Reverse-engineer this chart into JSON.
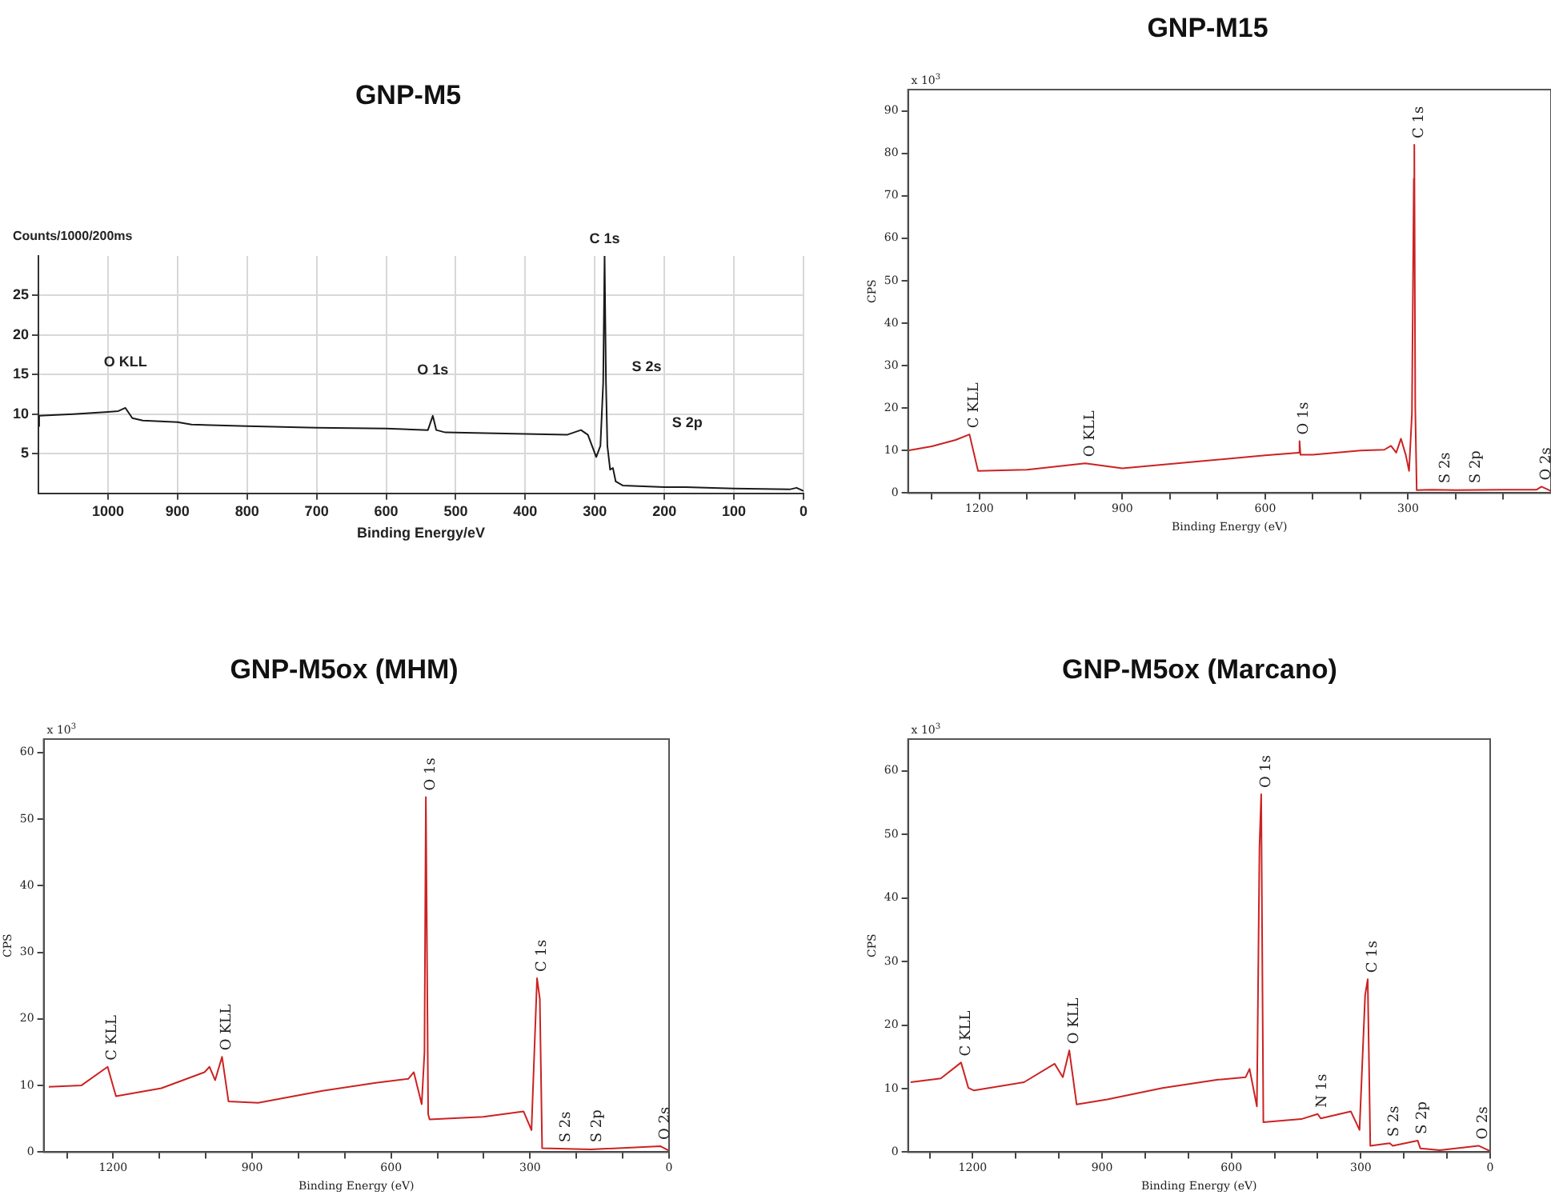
{
  "chart_data": [
    {
      "type": "line",
      "title": "GNP-M5",
      "xlabel": "Binding Energy/eV",
      "ylabel": "Counts/1000/200ms",
      "color": "#1a1a1a",
      "grid": true,
      "x": [
        1100,
        1099,
        1050,
        1000,
        985,
        975,
        965,
        950,
        900,
        880,
        800,
        700,
        600,
        540,
        533,
        528,
        515,
        400,
        340,
        320,
        310,
        298,
        292,
        288,
        286,
        284,
        282,
        278,
        274,
        270,
        260,
        200,
        170,
        100,
        20,
        10,
        0
      ],
      "values": [
        8.5,
        9.8,
        10,
        10.3,
        10.4,
        10.8,
        9.5,
        9.2,
        9.0,
        8.7,
        8.5,
        8.3,
        8.2,
        8.0,
        9.8,
        8.0,
        7.7,
        7.5,
        7.4,
        8.0,
        7.4,
        4.6,
        6,
        14,
        30,
        14,
        6,
        3.0,
        3.2,
        1.5,
        1.0,
        0.8,
        0.8,
        0.6,
        0.5,
        0.7,
        0.3
      ],
      "xlim": [
        1100,
        0
      ],
      "ylim": [
        0,
        30
      ],
      "xticks": [
        1000,
        900,
        800,
        700,
        600,
        500,
        400,
        300,
        200,
        100,
        0
      ],
      "yticks": [
        5,
        10,
        15,
        20,
        25
      ],
      "annotations": [
        {
          "text": "O KLL",
          "x": 975,
          "y": 10.8
        },
        {
          "text": "O 1s",
          "x": 533,
          "y": 9.8
        },
        {
          "text": "C 1s",
          "x": 286,
          "y": 30
        },
        "S 2s",
        "S 2p"
      ]
    },
    {
      "type": "line",
      "title": "GNP-M15",
      "xlabel": "Binding Energy (eV)",
      "ylabel": "CPS",
      "color": "#cc2222",
      "x": [
        1350,
        1300,
        1250,
        1221,
        1203,
        1100,
        978,
        900,
        600,
        530,
        528,
        526,
        500,
        400,
        350,
        336,
        325,
        315,
        305,
        298,
        292,
        288,
        287,
        285,
        282,
        250,
        200,
        100,
        30,
        20,
        10,
        0
      ],
      "values": [
        10,
        11,
        12.5,
        13.8,
        5.2,
        5.5,
        7,
        5.8,
        8.9,
        9.5,
        12.2,
        9,
        9,
        10,
        10.2,
        11.1,
        9.5,
        12.8,
        9,
        5.2,
        18.7,
        74,
        82,
        20,
        0.7,
        0.8,
        0.7,
        0.8,
        0.8,
        1.5,
        1.0,
        0.5
      ],
      "xlim": [
        1350,
        0
      ],
      "ylim": [
        0,
        95
      ],
      "xticks": [
        {
          "value": 1300,
          "label": null
        },
        1200,
        {
          "value": 1100,
          "label": null
        },
        {
          "value": 1000,
          "label": null
        },
        900,
        {
          "value": 800,
          "label": null
        },
        {
          "value": 700,
          "label": null
        },
        600,
        {
          "value": 500,
          "label": null
        },
        {
          "value": 400,
          "label": null
        },
        300,
        {
          "value": 200,
          "label": null
        },
        {
          "value": 100,
          "label": null
        }
      ],
      "yticks": [
        0,
        10,
        20,
        30,
        40,
        50,
        60,
        70,
        80,
        90
      ],
      "annotations": [
        "x 10$^{3}$",
        {
          "text": "C KLL",
          "x": 1221,
          "y": 13.8
        },
        {
          "text": "O KLL",
          "x": 978,
          "y": 7
        },
        {
          "text": "O 1s",
          "x": 528,
          "y": 12.2
        },
        {
          "text": "C 1s",
          "x": 287,
          "y": 82
        },
        {
          "text": "S 2s",
          "x": 232,
          "y": 0.8
        },
        {
          "text": "S 2p",
          "x": 168,
          "y": 0.8
        },
        {
          "text": "O 2s",
          "x": 20,
          "y": 1.5
        }
      ]
    },
    {
      "type": "line",
      "title": "GNP-M5ox (MHM)",
      "xlabel": "Binding Energy (eV)",
      "ylabel": "CPS",
      "color": "#cc2222",
      "x": [
        1339,
        1269,
        1212,
        1194,
        1096,
        1003,
        992,
        980,
        965,
        951,
        887,
        748,
        633,
        563,
        551,
        534,
        528,
        525,
        520,
        517,
        401,
        314,
        297,
        285,
        279,
        274,
        169,
        19,
        0
      ],
      "values": [
        9.8,
        10,
        12.8,
        8.4,
        9.6,
        12,
        12.8,
        10.8,
        14.3,
        7.6,
        7.4,
        9.2,
        10.4,
        11,
        12,
        7.2,
        15,
        53.3,
        5.7,
        4.9,
        5.3,
        6.1,
        3.3,
        26.1,
        23,
        0.6,
        0.4,
        0.9,
        0.2
      ],
      "xlim": [
        1350,
        0
      ],
      "ylim": [
        0,
        62
      ],
      "xticks": [
        {
          "value": 1300,
          "label": null
        },
        1200,
        {
          "value": 1100,
          "label": null
        },
        {
          "value": 1000,
          "label": null
        },
        900,
        {
          "value": 800,
          "label": null
        },
        {
          "value": 700,
          "label": null
        },
        600,
        {
          "value": 500,
          "label": null
        },
        {
          "value": 400,
          "label": null
        },
        300,
        {
          "value": 200,
          "label": null
        },
        {
          "value": 100,
          "label": null
        },
        0
      ],
      "yticks": [
        0,
        10,
        20,
        30,
        40,
        50,
        60
      ],
      "annotations": [
        "x 10$^{3}$",
        {
          "text": "C KLL",
          "x": 1212,
          "y": 12.8
        },
        {
          "text": "O KLL",
          "x": 965,
          "y": 14.3
        },
        {
          "text": "O 1s",
          "x": 525,
          "y": 53.3
        },
        {
          "text": "C 1s",
          "x": 285,
          "y": 26.1
        },
        {
          "text": "S 2s",
          "x": 232,
          "y": 0.5
        },
        {
          "text": "S 2p",
          "x": 166,
          "y": 0.5
        },
        {
          "text": "O 2s",
          "x": 19,
          "y": 0.9
        }
      ]
    },
    {
      "type": "line",
      "title": "GNP-M5ox (Marcano)",
      "xlabel": "Binding Energy (eV)",
      "ylabel": "CPS",
      "color": "#cc2222",
      "x": [
        1344,
        1274,
        1227,
        1210,
        1197,
        1081,
        1010,
        991,
        976,
        959,
        888,
        760,
        631,
        567,
        558,
        541,
        535,
        531,
        526,
        438,
        400,
        393,
        323,
        303,
        290,
        284,
        278,
        233,
        226,
        168,
        162,
        117,
        27,
        1
      ],
      "values": [
        11,
        11.6,
        14.1,
        10.1,
        9.7,
        11,
        13.9,
        11.8,
        16,
        7.5,
        8.3,
        10.1,
        11.4,
        11.8,
        13.1,
        7.2,
        48,
        56.3,
        4.7,
        5.2,
        6.0,
        5.3,
        6.4,
        3.5,
        24.7,
        27.2,
        1.0,
        1.4,
        1.0,
        1.8,
        0.6,
        0.3,
        1.0,
        0.2
      ],
      "xlim": [
        1350,
        0
      ],
      "ylim": [
        0,
        65
      ],
      "xticks": [
        {
          "value": 1300,
          "label": null
        },
        1200,
        {
          "value": 1100,
          "label": null
        },
        {
          "value": 1000,
          "label": null
        },
        900,
        {
          "value": 800,
          "label": null
        },
        {
          "value": 700,
          "label": null
        },
        600,
        {
          "value": 500,
          "label": null
        },
        {
          "value": 400,
          "label": null
        },
        300,
        {
          "value": 200,
          "label": null
        },
        {
          "value": 100,
          "label": null
        },
        0
      ],
      "yticks": [
        0,
        10,
        20,
        30,
        40,
        50,
        60
      ],
      "annotations": [
        "x 10$^{3}$",
        {
          "text": "C KLL",
          "x": 1227,
          "y": 14.1
        },
        {
          "text": "O KLL",
          "x": 976,
          "y": 16
        },
        {
          "text": "O 1s",
          "x": 531,
          "y": 56.3
        },
        {
          "text": "N 1s",
          "x": 400,
          "y": 6.0
        },
        {
          "text": "C 1s",
          "x": 284,
          "y": 27.2
        },
        {
          "text": "S 2s",
          "x": 233,
          "y": 1.4
        },
        {
          "text": "S 2p",
          "x": 168,
          "y": 1.8
        },
        {
          "text": "O 2s",
          "x": 27,
          "y": 1.0
        }
      ]
    }
  ]
}
